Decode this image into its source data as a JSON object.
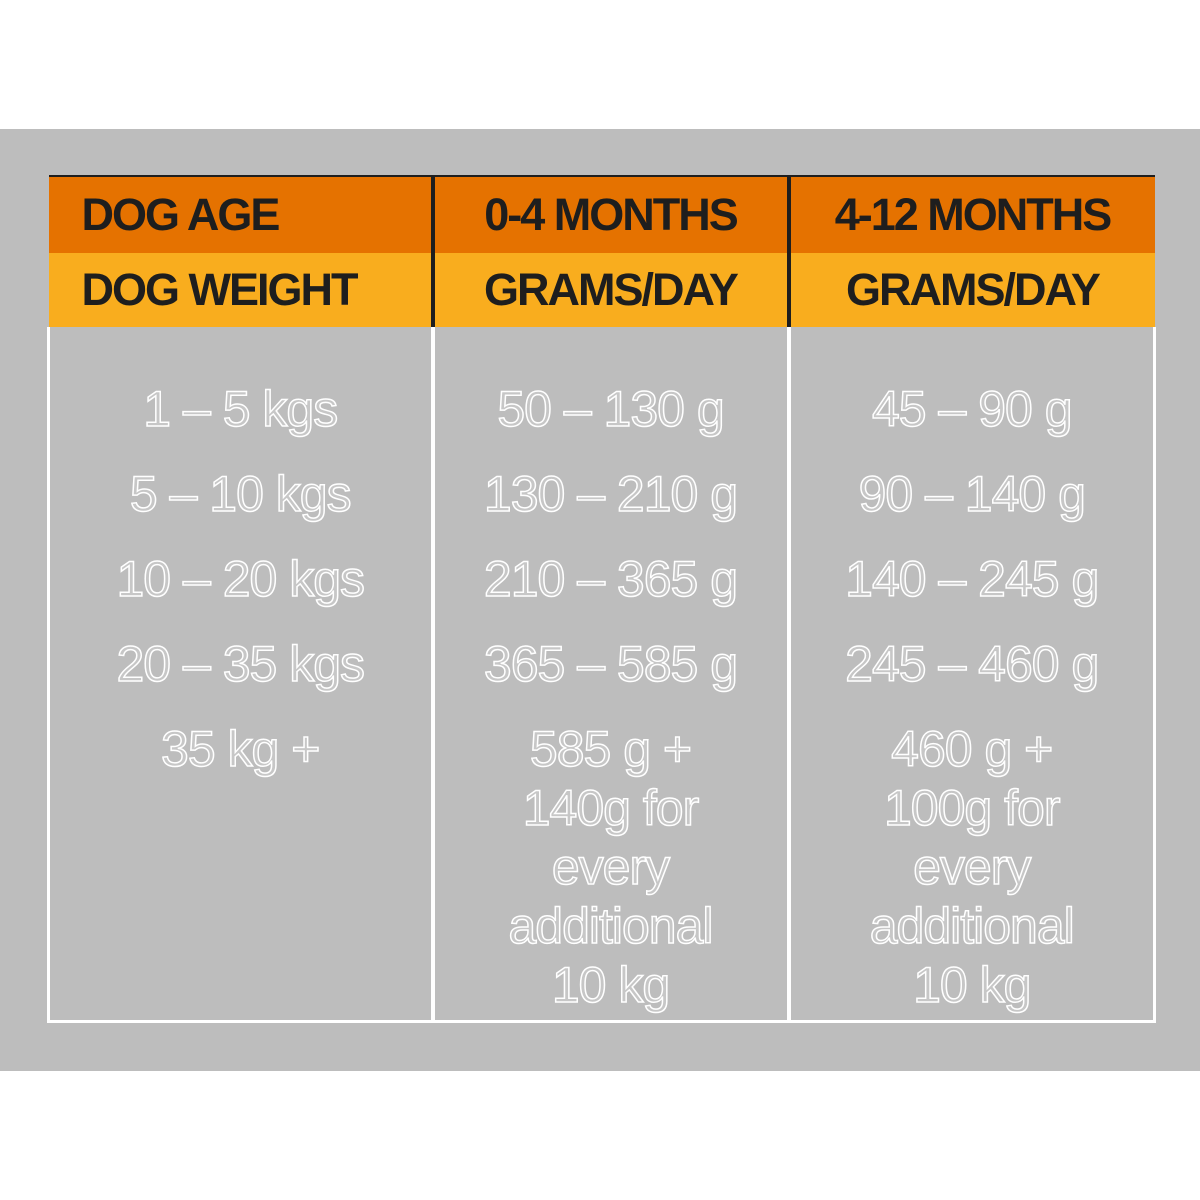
{
  "header": {
    "age_label": "DOG AGE",
    "age_col_1": "0-4 MONTHS",
    "age_col_2": "4-12 MONTHS",
    "weight_label": "DOG WEIGHT",
    "unit_col_1": "GRAMS/DAY",
    "unit_col_2": "GRAMS/DAY"
  },
  "weights": [
    "1 – 5 kgs",
    "5 – 10 kgs",
    "10 – 20 kgs",
    "20 – 35 kgs",
    "35 kg +"
  ],
  "months_0_4": [
    "50 – 130 g",
    "130 – 210 g",
    "210 – 365 g",
    "365 – 585 g"
  ],
  "months_0_4_extra": [
    "585 g +",
    "140g for",
    "every",
    "additional",
    "10 kg"
  ],
  "months_4_12": [
    "45 – 90 g",
    "90 – 140 g",
    "140 – 245 g",
    "245 – 460 g"
  ],
  "months_4_12_extra": [
    "460 g +",
    "100g for",
    "every",
    "additional",
    "10 kg"
  ],
  "colors": {
    "age_row": "#e57200",
    "weight_row": "#f9ad1e",
    "panel": "#bdbdbd",
    "header_text": "#1e1e1e",
    "value_outline": "#ffffff"
  }
}
